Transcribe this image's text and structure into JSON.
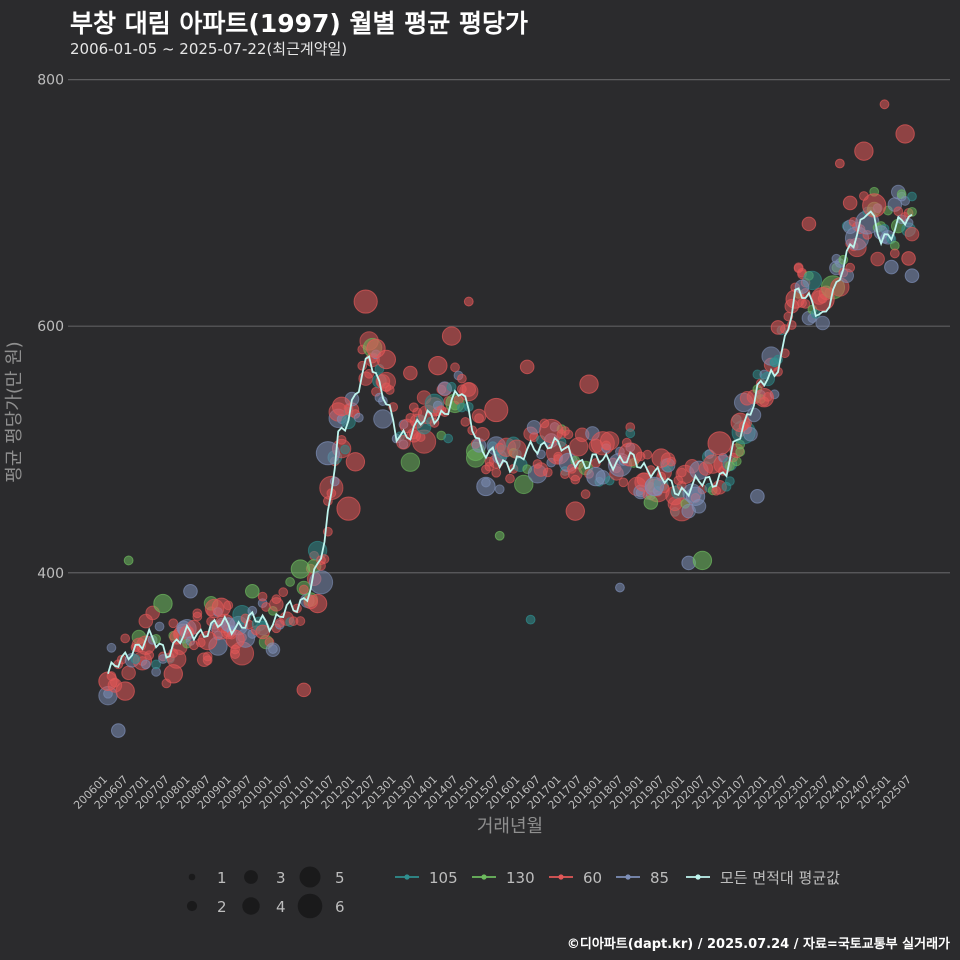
{
  "title": "부창 대림 아파트(1997) 월별 평균 평당가",
  "subtitle": "2006-01-05 ~ 2025-07-22(최근계약일)",
  "footer": "©디아파트(dapt.kr) / 2025.07.24 / 자료=국토교통부 실거래가",
  "colors": {
    "background": "#2b2b2d",
    "grid": "#5e5e60",
    "axis_text": "#bdbdbd",
    "axis_title": "#8f8f8f",
    "s105": "#2f8f8f",
    "s130": "#6dbb5e",
    "s60": "#e25858",
    "s85": "#7e8fb8",
    "avg": "#bff5ee"
  },
  "chart_data": {
    "type": "scatter",
    "title": "부창 대림 아파트(1997) 월별 평균 평당가",
    "xlabel": "거래년월",
    "ylabel": "평균 평당가(만 원)",
    "x_start": "2006-01",
    "x_end": "2025-07",
    "ylim": [
      240,
      820
    ],
    "yticks": [
      400,
      600,
      800
    ],
    "xticks": [
      "200601",
      "200607",
      "200701",
      "200707",
      "200801",
      "200807",
      "200901",
      "200907",
      "201001",
      "201007",
      "201101",
      "201107",
      "201201",
      "201207",
      "201301",
      "201307",
      "201401",
      "201407",
      "201501",
      "201507",
      "201601",
      "201607",
      "201701",
      "201707",
      "201801",
      "201807",
      "201901",
      "201907",
      "202001",
      "202007",
      "202101",
      "202107",
      "202201",
      "202207",
      "202301",
      "202307",
      "202401",
      "202407",
      "202501",
      "202507"
    ],
    "size_legend": {
      "title": "",
      "values": [
        1,
        2,
        3,
        4,
        5,
        6
      ]
    },
    "series_legend": [
      {
        "key": "s105",
        "label": "105"
      },
      {
        "key": "s130",
        "label": "130"
      },
      {
        "key": "s60",
        "label": "60"
      },
      {
        "key": "s85",
        "label": "85"
      },
      {
        "key": "avg",
        "label": "모든 면적대 평균값"
      }
    ],
    "average_anchors": [
      [
        "2006-01",
        318
      ],
      [
        "2006-03",
        322
      ],
      [
        "2006-05",
        327
      ],
      [
        "2006-08",
        340
      ],
      [
        "2007-01",
        345
      ],
      [
        "2007-06",
        338
      ],
      [
        "2008-01",
        350
      ],
      [
        "2008-06",
        355
      ],
      [
        "2009-01",
        358
      ],
      [
        "2009-06",
        360
      ],
      [
        "2010-01",
        362
      ],
      [
        "2010-08",
        372
      ],
      [
        "2010-12",
        390
      ],
      [
        "2011-04",
        420
      ],
      [
        "2011-08",
        515
      ],
      [
        "2011-11",
        525
      ],
      [
        "2012-02",
        548
      ],
      [
        "2012-05",
        580
      ],
      [
        "2012-09",
        545
      ],
      [
        "2013-01",
        510
      ],
      [
        "2013-06",
        518
      ],
      [
        "2014-01",
        528
      ],
      [
        "2014-08",
        545
      ],
      [
        "2015-02",
        500
      ],
      [
        "2015-07",
        488
      ],
      [
        "2016-01",
        492
      ],
      [
        "2016-09",
        508
      ],
      [
        "2017-03",
        496
      ],
      [
        "2017-09",
        488
      ],
      [
        "2018-03",
        493
      ],
      [
        "2018-09",
        490
      ],
      [
        "2019-03",
        486
      ],
      [
        "2019-08",
        470
      ],
      [
        "2020-01",
        468
      ],
      [
        "2020-06",
        472
      ],
      [
        "2021-01",
        482
      ],
      [
        "2021-06",
        520
      ],
      [
        "2021-10",
        550
      ],
      [
        "2022-03",
        558
      ],
      [
        "2022-09",
        625
      ],
      [
        "2023-02",
        620
      ],
      [
        "2023-05",
        610
      ],
      [
        "2023-09",
        628
      ],
      [
        "2024-01",
        668
      ],
      [
        "2024-06",
        692
      ],
      [
        "2024-10",
        672
      ],
      [
        "2025-03",
        682
      ],
      [
        "2025-07",
        685
      ]
    ],
    "points": [
      {
        "s": "s60",
        "x": "2006-01",
        "y": 312,
        "n": 3
      },
      {
        "s": "s85",
        "x": "2006-04",
        "y": 272,
        "n": 2
      },
      {
        "s": "s60",
        "x": "2006-06",
        "y": 304,
        "n": 3
      },
      {
        "s": "s130",
        "x": "2006-07",
        "y": 410,
        "n": 1
      },
      {
        "s": "s105",
        "x": "2006-09",
        "y": 330,
        "n": 1
      },
      {
        "s": "s130",
        "x": "2007-05",
        "y": 375,
        "n": 3
      },
      {
        "s": "s60",
        "x": "2007-08",
        "y": 318,
        "n": 3
      },
      {
        "s": "s85",
        "x": "2008-01",
        "y": 385,
        "n": 2
      },
      {
        "s": "s60",
        "x": "2008-06",
        "y": 345,
        "n": 3
      },
      {
        "s": "s60",
        "x": "2008-10",
        "y": 372,
        "n": 3
      },
      {
        "s": "s85",
        "x": "2008-12",
        "y": 358,
        "n": 2
      },
      {
        "s": "s130",
        "x": "2009-07",
        "y": 385,
        "n": 2
      },
      {
        "s": "s60",
        "x": "2009-02",
        "y": 346,
        "n": 3
      },
      {
        "s": "s60",
        "x": "2009-10",
        "y": 352,
        "n": 2
      },
      {
        "s": "s130",
        "x": "2010-09",
        "y": 403,
        "n": 3
      },
      {
        "s": "s60",
        "x": "2010-10",
        "y": 305,
        "n": 2
      },
      {
        "s": "s60",
        "x": "2011-02",
        "y": 375,
        "n": 3
      },
      {
        "s": "s85",
        "x": "2011-05",
        "y": 497,
        "n": 4
      },
      {
        "s": "s60",
        "x": "2011-09",
        "y": 535,
        "n": 3
      },
      {
        "s": "s60",
        "x": "2011-11",
        "y": 452,
        "n": 4
      },
      {
        "s": "s60",
        "x": "2012-01",
        "y": 490,
        "n": 3
      },
      {
        "s": "s60",
        "x": "2012-04",
        "y": 620,
        "n": 4
      },
      {
        "s": "s60",
        "x": "2012-07",
        "y": 582,
        "n": 3
      },
      {
        "s": "s60",
        "x": "2012-10",
        "y": 573,
        "n": 3
      },
      {
        "s": "s60",
        "x": "2013-05",
        "y": 562,
        "n": 2
      },
      {
        "s": "s60",
        "x": "2014-01",
        "y": 568,
        "n": 3
      },
      {
        "s": "s60",
        "x": "2014-05",
        "y": 592,
        "n": 3
      },
      {
        "s": "s60",
        "x": "2014-10",
        "y": 620,
        "n": 1
      },
      {
        "s": "s85",
        "x": "2015-03",
        "y": 470,
        "n": 3
      },
      {
        "s": "s60",
        "x": "2015-06",
        "y": 532,
        "n": 4
      },
      {
        "s": "s130",
        "x": "2015-07",
        "y": 430,
        "n": 1
      },
      {
        "s": "s60",
        "x": "2016-03",
        "y": 567,
        "n": 2
      },
      {
        "s": "s105",
        "x": "2016-04",
        "y": 362,
        "n": 1
      },
      {
        "s": "s60",
        "x": "2016-10",
        "y": 515,
        "n": 4
      },
      {
        "s": "s60",
        "x": "2017-05",
        "y": 450,
        "n": 3
      },
      {
        "s": "s60",
        "x": "2017-09",
        "y": 553,
        "n": 3
      },
      {
        "s": "s85",
        "x": "2017-11",
        "y": 478,
        "n": 3
      },
      {
        "s": "s85",
        "x": "2018-06",
        "y": 388,
        "n": 1
      },
      {
        "s": "s60",
        "x": "2018-09",
        "y": 496,
        "n": 4
      },
      {
        "s": "s130",
        "x": "2019-03",
        "y": 457,
        "n": 2
      },
      {
        "s": "s85",
        "x": "2019-04",
        "y": 470,
        "n": 3
      },
      {
        "s": "s60",
        "x": "2019-06",
        "y": 493,
        "n": 3
      },
      {
        "s": "s85",
        "x": "2020-02",
        "y": 408,
        "n": 2
      },
      {
        "s": "s130",
        "x": "2020-06",
        "y": 410,
        "n": 3
      },
      {
        "s": "s85",
        "x": "2020-04",
        "y": 462,
        "n": 3
      },
      {
        "s": "s60",
        "x": "2020-11",
        "y": 505,
        "n": 4
      },
      {
        "s": "s60",
        "x": "2021-05",
        "y": 522,
        "n": 3
      },
      {
        "s": "s85",
        "x": "2021-10",
        "y": 462,
        "n": 2
      },
      {
        "s": "s60",
        "x": "2021-12",
        "y": 542,
        "n": 3
      },
      {
        "s": "s60",
        "x": "2022-04",
        "y": 599,
        "n": 2
      },
      {
        "s": "s60",
        "x": "2022-09",
        "y": 622,
        "n": 3
      },
      {
        "s": "s85",
        "x": "2022-11",
        "y": 632,
        "n": 2
      },
      {
        "s": "s60",
        "x": "2023-01",
        "y": 683,
        "n": 2
      },
      {
        "s": "s60",
        "x": "2023-05",
        "y": 622,
        "n": 4
      },
      {
        "s": "s60",
        "x": "2023-10",
        "y": 732,
        "n": 1
      },
      {
        "s": "s60",
        "x": "2024-01",
        "y": 700,
        "n": 2
      },
      {
        "s": "s60",
        "x": "2024-05",
        "y": 742,
        "n": 3
      },
      {
        "s": "s60",
        "x": "2024-08",
        "y": 698,
        "n": 4
      },
      {
        "s": "s60",
        "x": "2024-11",
        "y": 780,
        "n": 1
      },
      {
        "s": "s85",
        "x": "2025-01",
        "y": 648,
        "n": 2
      },
      {
        "s": "s60",
        "x": "2025-05",
        "y": 756,
        "n": 3
      },
      {
        "s": "s85",
        "x": "2025-07",
        "y": 641,
        "n": 2
      },
      {
        "s": "s60",
        "x": "2025-06",
        "y": 655,
        "n": 2
      },
      {
        "s": "s85",
        "x": "2024-10",
        "y": 676,
        "n": 2
      }
    ]
  }
}
